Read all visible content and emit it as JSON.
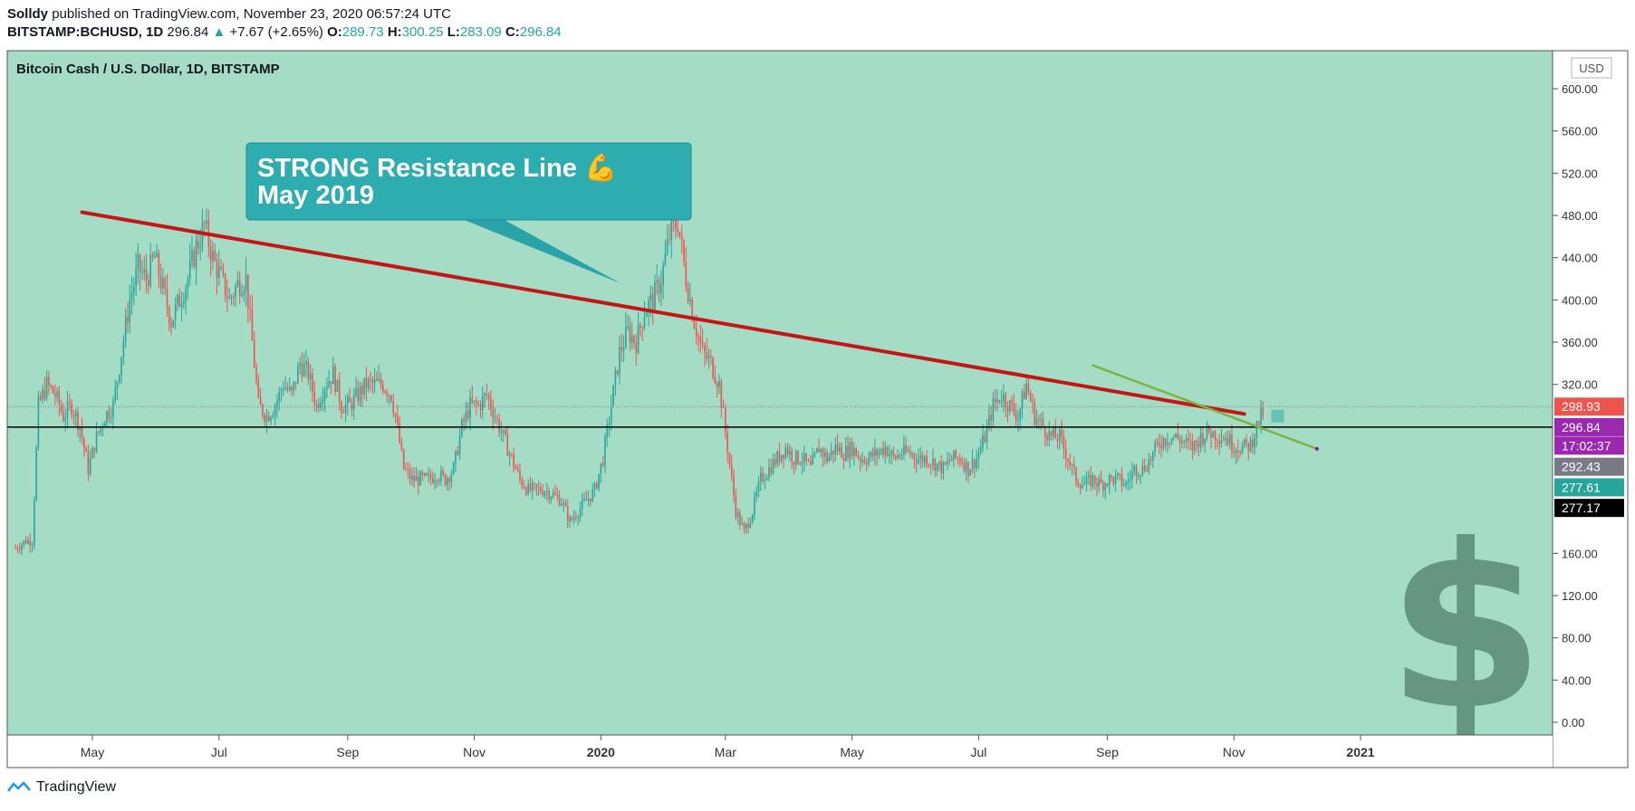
{
  "header": {
    "author": "Solldy",
    "published_text": "published on TradingView.com, November 23, 2020 06:57:24 UTC",
    "symbol": "BITSTAMP:BCHUSD, 1D",
    "last": "296.84",
    "arrow": "▲",
    "change": "+7.67 (+2.65%)",
    "o_label": "O:",
    "o_value": "289.73",
    "h_label": "H:",
    "h_value": "300.25",
    "l_label": "L:",
    "l_value": "283.09",
    "c_label": "C:",
    "c_value": "296.84"
  },
  "chart_data": {
    "type": "candlestick",
    "title": "Bitcoin Cash / U.S. Dollar, 1D, BITSTAMP",
    "currency": "USD",
    "ylim": [
      -10,
      620
    ],
    "y_ticks": [
      "600.00",
      "560.00",
      "520.00",
      "480.00",
      "440.00",
      "400.00",
      "360.00",
      "320.00",
      "160.00",
      "120.00",
      "80.00",
      "40.00",
      "0.00"
    ],
    "x_ticks": [
      {
        "label": "May",
        "day": 0,
        "bold": false
      },
      {
        "label": "Jul",
        "day": 61,
        "bold": false
      },
      {
        "label": "Sep",
        "day": 123,
        "bold": false
      },
      {
        "label": "Nov",
        "day": 184,
        "bold": false
      },
      {
        "label": "2020",
        "day": 245,
        "bold": true
      },
      {
        "label": "Mar",
        "day": 305,
        "bold": false
      },
      {
        "label": "May",
        "day": 366,
        "bold": false
      },
      {
        "label": "Jul",
        "day": 427,
        "bold": false
      },
      {
        "label": "Sep",
        "day": 489,
        "bold": false
      },
      {
        "label": "Nov",
        "day": 550,
        "bold": false
      },
      {
        "label": "2021",
        "day": 611,
        "bold": true
      }
    ],
    "x_range_days": [
      -37,
      637
    ],
    "candles_anchor": [
      [
        -37,
        165
      ],
      [
        -32,
        172
      ],
      [
        -29,
        172
      ],
      [
        -26,
        300
      ],
      [
        -22,
        320
      ],
      [
        -18,
        310
      ],
      [
        -14,
        290
      ],
      [
        -10,
        300
      ],
      [
        -6,
        280
      ],
      [
        -2,
        240
      ],
      [
        2,
        270
      ],
      [
        6,
        290
      ],
      [
        10,
        300
      ],
      [
        14,
        350
      ],
      [
        18,
        400
      ],
      [
        22,
        430
      ],
      [
        26,
        420
      ],
      [
        30,
        440
      ],
      [
        34,
        410
      ],
      [
        38,
        380
      ],
      [
        42,
        400
      ],
      [
        46,
        420
      ],
      [
        50,
        450
      ],
      [
        54,
        470
      ],
      [
        58,
        440
      ],
      [
        62,
        420
      ],
      [
        66,
        400
      ],
      [
        70,
        415
      ],
      [
        74,
        420
      ],
      [
        76,
        380
      ],
      [
        80,
        300
      ],
      [
        84,
        290
      ],
      [
        88,
        300
      ],
      [
        92,
        320
      ],
      [
        96,
        310
      ],
      [
        100,
        340
      ],
      [
        104,
        330
      ],
      [
        108,
        300
      ],
      [
        112,
        320
      ],
      [
        116,
        330
      ],
      [
        120,
        300
      ],
      [
        124,
        300
      ],
      [
        128,
        310
      ],
      [
        132,
        320
      ],
      [
        136,
        320
      ],
      [
        140,
        320
      ],
      [
        144,
        310
      ],
      [
        146,
        290
      ],
      [
        150,
        240
      ],
      [
        154,
        230
      ],
      [
        158,
        230
      ],
      [
        162,
        230
      ],
      [
        166,
        235
      ],
      [
        170,
        230
      ],
      [
        174,
        240
      ],
      [
        178,
        280
      ],
      [
        182,
        300
      ],
      [
        186,
        300
      ],
      [
        190,
        310
      ],
      [
        194,
        290
      ],
      [
        198,
        270
      ],
      [
        202,
        250
      ],
      [
        206,
        230
      ],
      [
        210,
        220
      ],
      [
        214,
        220
      ],
      [
        218,
        220
      ],
      [
        222,
        215
      ],
      [
        226,
        210
      ],
      [
        230,
        190
      ],
      [
        234,
        200
      ],
      [
        238,
        210
      ],
      [
        242,
        220
      ],
      [
        246,
        250
      ],
      [
        250,
        300
      ],
      [
        254,
        350
      ],
      [
        258,
        370
      ],
      [
        262,
        360
      ],
      [
        266,
        390
      ],
      [
        270,
        400
      ],
      [
        274,
        420
      ],
      [
        278,
        460
      ],
      [
        282,
        475
      ],
      [
        286,
        420
      ],
      [
        290,
        380
      ],
      [
        294,
        350
      ],
      [
        298,
        340
      ],
      [
        302,
        320
      ],
      [
        306,
        260
      ],
      [
        310,
        200
      ],
      [
        314,
        180
      ],
      [
        318,
        200
      ],
      [
        322,
        230
      ],
      [
        326,
        240
      ],
      [
        330,
        250
      ],
      [
        334,
        260
      ],
      [
        338,
        250
      ],
      [
        342,
        250
      ],
      [
        346,
        240
      ],
      [
        350,
        260
      ],
      [
        354,
        250
      ],
      [
        358,
        260
      ],
      [
        362,
        255
      ],
      [
        366,
        260
      ],
      [
        370,
        250
      ],
      [
        374,
        250
      ],
      [
        378,
        255
      ],
      [
        382,
        260
      ],
      [
        386,
        250
      ],
      [
        390,
        255
      ],
      [
        394,
        255
      ],
      [
        398,
        250
      ],
      [
        402,
        250
      ],
      [
        406,
        245
      ],
      [
        410,
        240
      ],
      [
        414,
        250
      ],
      [
        418,
        250
      ],
      [
        422,
        240
      ],
      [
        426,
        250
      ],
      [
        430,
        270
      ],
      [
        434,
        300
      ],
      [
        438,
        310
      ],
      [
        442,
        300
      ],
      [
        446,
        290
      ],
      [
        450,
        320
      ],
      [
        454,
        290
      ],
      [
        458,
        280
      ],
      [
        462,
        270
      ],
      [
        466,
        270
      ],
      [
        470,
        250
      ],
      [
        474,
        230
      ],
      [
        478,
        225
      ],
      [
        482,
        230
      ],
      [
        486,
        225
      ],
      [
        490,
        230
      ],
      [
        494,
        230
      ],
      [
        498,
        225
      ],
      [
        502,
        240
      ],
      [
        506,
        240
      ],
      [
        510,
        250
      ],
      [
        514,
        265
      ],
      [
        518,
        270
      ],
      [
        522,
        270
      ],
      [
        526,
        265
      ],
      [
        530,
        260
      ],
      [
        534,
        270
      ],
      [
        538,
        275
      ],
      [
        542,
        272
      ],
      [
        546,
        270
      ],
      [
        550,
        262
      ],
      [
        554,
        260
      ],
      [
        558,
        263
      ],
      [
        562,
        285
      ],
      [
        565,
        296.84
      ]
    ],
    "lines": [
      {
        "name": "resistance",
        "color": "#c41616",
        "x1": -5,
        "y1": 483,
        "x2": 555,
        "y2": 292
      },
      {
        "name": "trend",
        "color": "#7cb342",
        "x1": 482,
        "y1": 338,
        "x2": 590,
        "y2": 259
      }
    ],
    "price_labels": [
      {
        "value": "298.93",
        "y": 298.93,
        "bg": "#ef5350",
        "fg": "#ffffff"
      },
      {
        "value": "296.84",
        "y": 279.5,
        "bg": "#9c27b0",
        "fg": "#ffffff"
      },
      {
        "value": "17:02:37",
        "y": 262,
        "bg": "#9c27b0",
        "fg": "#ffffff"
      },
      {
        "value": "292.43",
        "y": 242,
        "bg": "#787b86",
        "fg": "#ffffff"
      },
      {
        "value": "277.61",
        "y": 222.5,
        "bg": "#26a69a",
        "fg": "#ffffff"
      },
      {
        "value": "277.17",
        "y": 203,
        "bg": "#000000",
        "fg": "#ffffff"
      }
    ],
    "annotation": {
      "line1": "STRONG Resistance Line 💪",
      "line2": "May 2019"
    },
    "background": "#a5dcc5",
    "up_color": "#26a69a",
    "down_color": "#ef5350"
  },
  "footer": {
    "brand": "TradingView"
  }
}
